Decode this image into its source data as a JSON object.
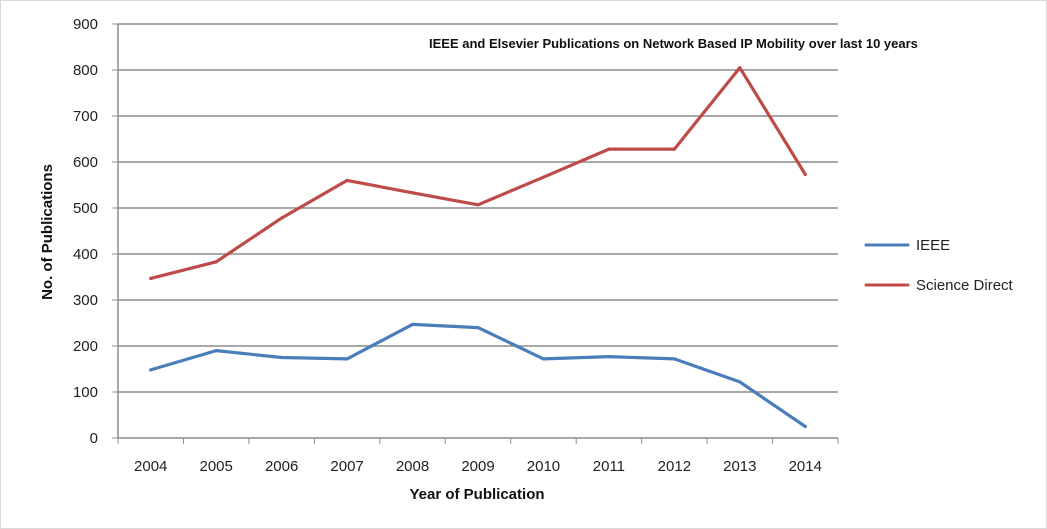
{
  "chart_data": {
    "type": "line",
    "title": "IEEE and Elsevier Publications on Network Based IP Mobility over last 10 years",
    "xlabel": "Year of Publication",
    "ylabel": "No. of Publications",
    "categories": [
      "2004",
      "2005",
      "2006",
      "2007",
      "2008",
      "2009",
      "2010",
      "2011",
      "2012",
      "2013",
      "2014"
    ],
    "ylim": [
      0,
      900
    ],
    "yticks": [
      "0",
      "100",
      "200",
      "300",
      "400",
      "500",
      "600",
      "700",
      "800",
      "900"
    ],
    "grid": true,
    "legend_position": "right",
    "series": [
      {
        "name": "IEEE",
        "color": "#4a7ebb",
        "values": [
          148,
          190,
          175,
          172,
          247,
          240,
          172,
          177,
          172,
          122,
          25
        ]
      },
      {
        "name": "Science Direct",
        "color": "#be4b48",
        "values": [
          347,
          383,
          478,
          560,
          533,
          507,
          567,
          628,
          628,
          805,
          573
        ]
      }
    ]
  }
}
